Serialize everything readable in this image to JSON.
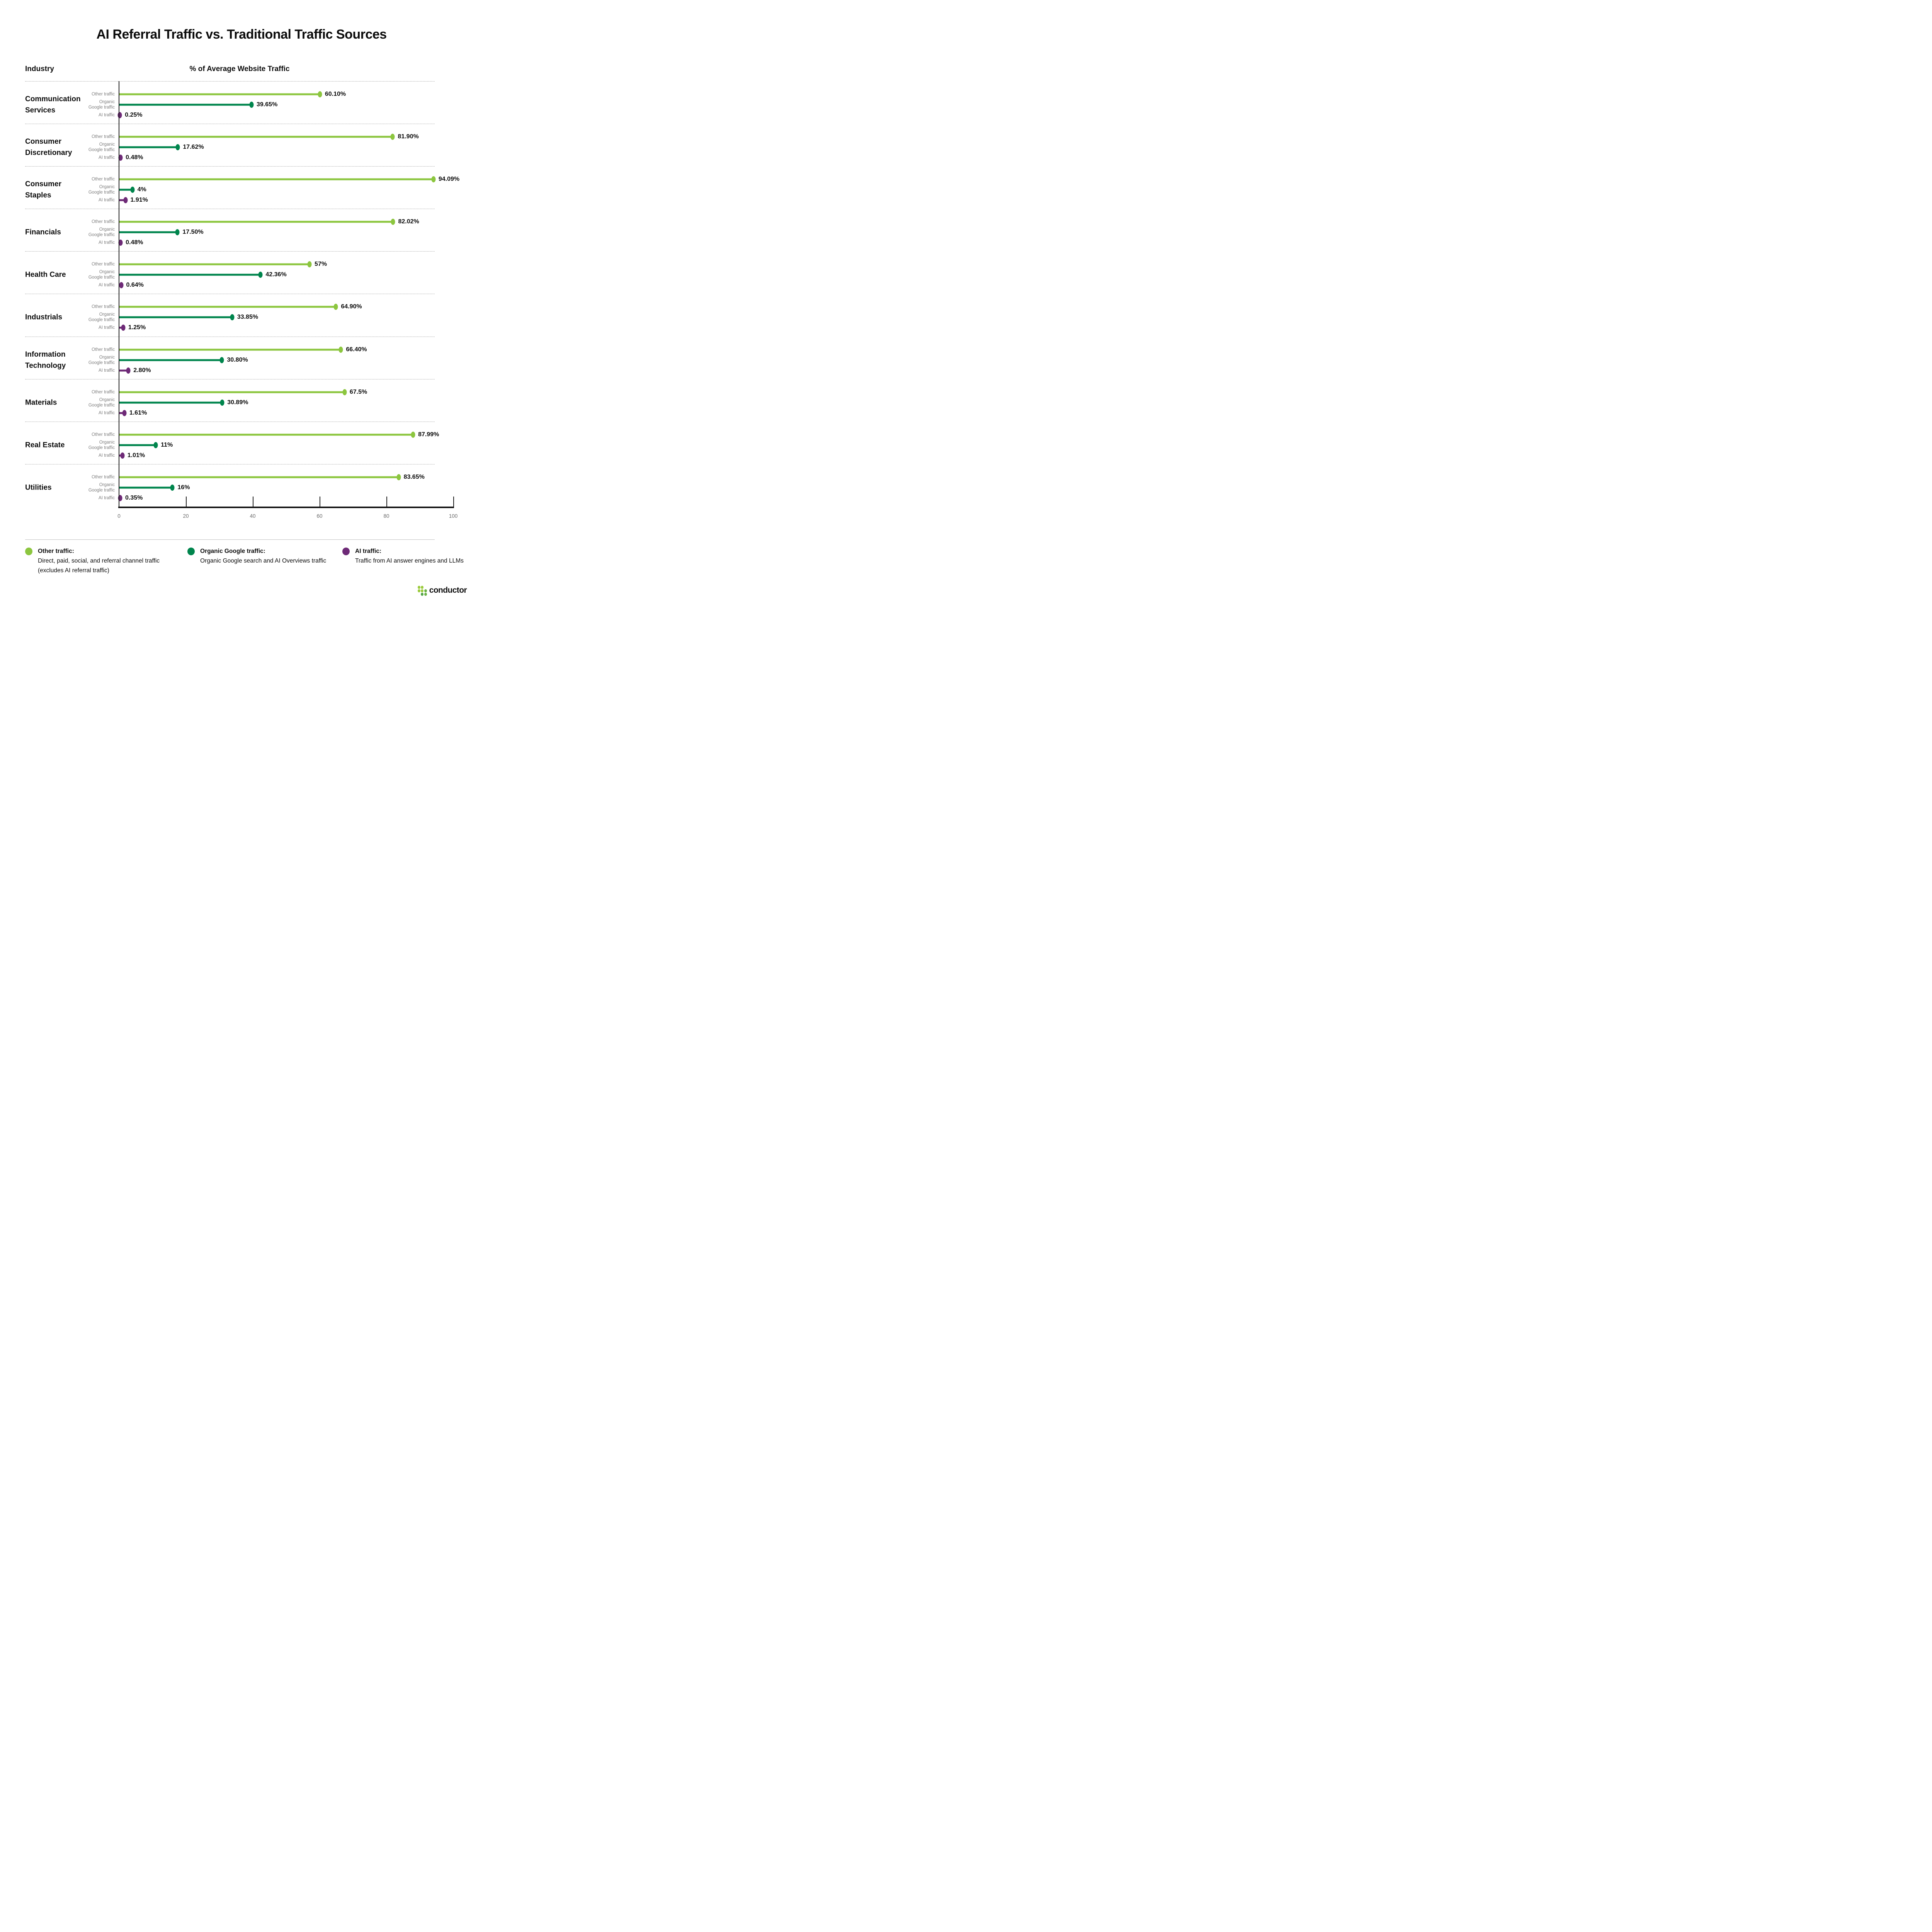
{
  "page": {
    "title": "AI Referral Traffic vs. Traditional Traffic Sources",
    "column_headers": {
      "left": "Industry",
      "right": "% of Average Website Traffic"
    }
  },
  "chart_data": {
    "type": "bar",
    "subtype": "horizontal-lollipop",
    "title": "AI Referral Traffic vs. Traditional Traffic Sources",
    "xlabel": "% of Average Website Traffic",
    "ylabel": "Industry",
    "categories": [
      "Communication\nServices",
      "Consumer\nDiscretionary",
      "Consumer\nStaples",
      "Financials",
      "Health Care",
      "Industrials",
      "Information\nTechnology",
      "Materials",
      "Real Estate",
      "Utilities"
    ],
    "row_labels": [
      "Other traffic",
      "Organic\nGoogle traffic",
      "AI traffic"
    ],
    "series": [
      {
        "name": "Other traffic",
        "color": "#8CC63F",
        "values": [
          60.1,
          81.9,
          94.09,
          82.02,
          57,
          64.9,
          66.4,
          67.5,
          87.99,
          83.65
        ],
        "labels": [
          "60.10%",
          "81.90%",
          "94.09%",
          "82.02%",
          "57%",
          "64.90%",
          "66.40%",
          "67.5%",
          "87.99%",
          "83.65%"
        ]
      },
      {
        "name": "Organic Google traffic",
        "color": "#00854D",
        "values": [
          39.65,
          17.62,
          4,
          17.5,
          42.36,
          33.85,
          30.8,
          30.89,
          11,
          16
        ],
        "labels": [
          "39.65%",
          "17.62%",
          "4%",
          "17.50%",
          "42.36%",
          "33.85%",
          "30.80%",
          "30.89%",
          "11%",
          "16%"
        ]
      },
      {
        "name": "AI traffic",
        "color": "#6E2A77",
        "values": [
          0.25,
          0.48,
          1.91,
          0.48,
          0.64,
          1.25,
          2.8,
          1.61,
          1.01,
          0.35
        ],
        "labels": [
          "0.25%",
          "0.48%",
          "1.91%",
          "0.48%",
          "0.64%",
          "1.25%",
          "2.80%",
          "1.61%",
          "1.01%",
          "0.35%"
        ]
      }
    ],
    "x_axis": {
      "range": [
        0,
        100
      ],
      "ticks": [
        0,
        20,
        40,
        60,
        80,
        100
      ]
    },
    "grid": "dotted-row-separators",
    "legend_position": "bottom"
  },
  "legend": [
    {
      "label": "Other traffic:",
      "desc": "Direct, paid, social, and referral channel traffic\n(excludes AI referral traffic)",
      "color": "#8CC63F"
    },
    {
      "label": "Organic Google traffic:",
      "desc": "Organic Google search and AI Overviews traffic",
      "color": "#00854D"
    },
    {
      "label": "AI traffic:",
      "desc": "Traffic from AI answer engines and LLMs",
      "color": "#6E2A77"
    }
  ],
  "footer": {
    "logo_text": "conductor",
    "logo_dot_colors": [
      "#9BCB3C",
      "#9BCB3C",
      "#9BCB3C",
      "#9BCB3C",
      "#6BB244",
      "#52A447",
      "#6BB244"
    ]
  }
}
